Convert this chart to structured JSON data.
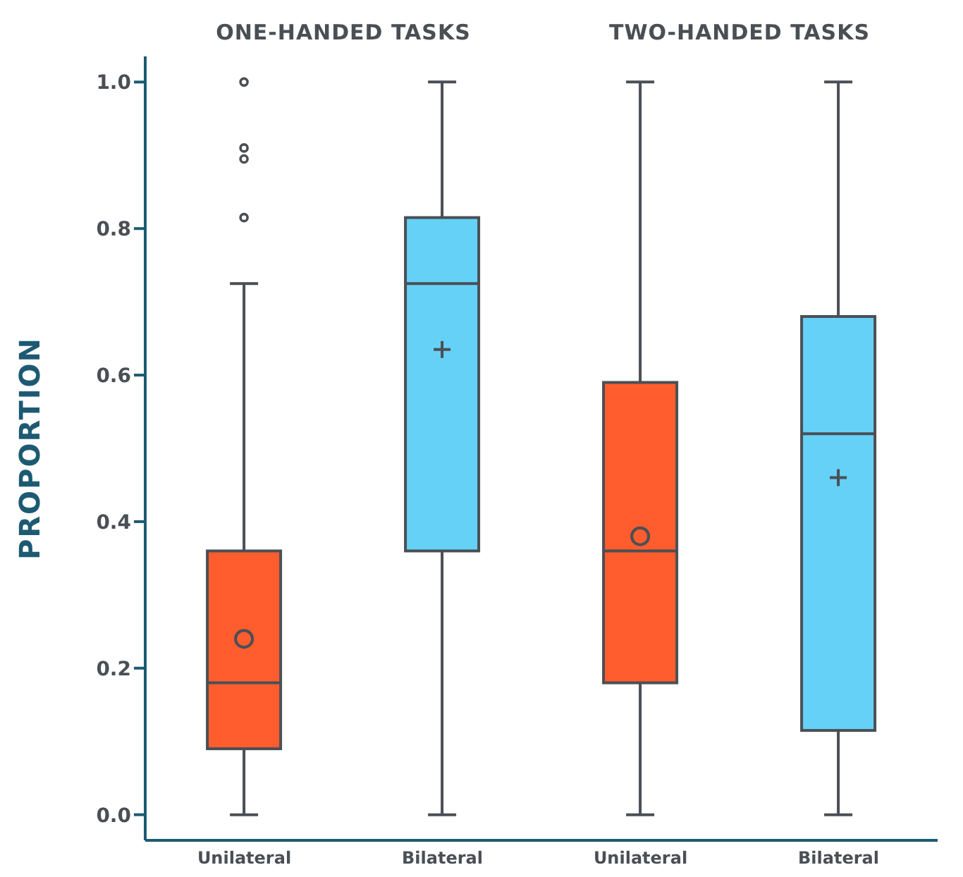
{
  "chart_data": {
    "type": "box",
    "ylabel": "PROPORTION",
    "categories": [
      "Unilateral",
      "Bilateral",
      "Unilateral",
      "Bilateral"
    ],
    "annotations": [
      "ONE-HANDED TASKS",
      "TWO-HANDED TASKS"
    ],
    "series": [
      {
        "color": "#ff5d2d",
        "marker": "circle",
        "boxes": [
          {
            "low": 0,
            "q1": 0.09,
            "median": 0.18,
            "q3": 0.36,
            "high": 0.725,
            "mean": 0.24,
            "outliers": [
              0.815,
              0.895,
              0.91,
              1.0
            ]
          },
          null,
          {
            "low": 0,
            "q1": 0.18,
            "median": 0.36,
            "q3": 0.59,
            "high": 1.0,
            "mean": 0.38
          },
          null
        ]
      },
      {
        "color": "#66d1f6",
        "marker": "cross",
        "boxes": [
          null,
          {
            "low": 0,
            "q1": 0.36,
            "median": 0.725,
            "q3": 0.815,
            "high": 1.0,
            "mean": 0.635
          },
          null,
          {
            "low": 0,
            "q1": 0.115,
            "median": 0.52,
            "q3": 0.68,
            "high": 1.0,
            "mean": 0.46
          }
        ]
      }
    ],
    "ylim": [
      -0.035,
      1.035
    ],
    "yticks": [
      {
        "value": 0,
        "label": "0.0"
      },
      0.2,
      0.4,
      0.6,
      0.8,
      {
        "value": 1,
        "label": "1.0"
      }
    ]
  }
}
